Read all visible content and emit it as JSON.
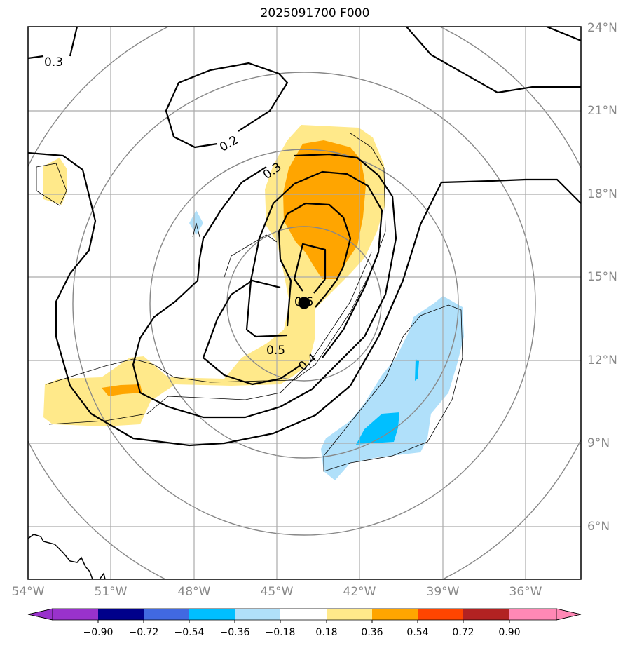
{
  "title": "2025091700 F000",
  "lon_labels": [
    "54°W",
    "51°W",
    "48°W",
    "45°W",
    "42°W",
    "39°W",
    "36°W"
  ],
  "lat_labels": [
    "24°N",
    "21°N",
    "18°N",
    "15°N",
    "12°N",
    "9°N",
    "6°N"
  ],
  "contour_labels": [
    "0.3",
    "0.2",
    "0.3",
    "0.6",
    "0.5",
    "0.4"
  ],
  "colorbar": {
    "ticks": [
      "−0.90",
      "−0.72",
      "−0.54",
      "−0.36",
      "−0.18",
      "0.18",
      "0.36",
      "0.54",
      "0.72",
      "0.90"
    ],
    "colors": [
      "#9932cc",
      "#00008b",
      "#4169e1",
      "#00bfff",
      "#b0e0fa",
      "#ffffff",
      "#ffe98a",
      "#ffa500",
      "#ff4500",
      "#b22222",
      "#ff88b5"
    ]
  },
  "colors": {
    "grid": "#888888",
    "light_yellow": "#ffe98a",
    "orange": "#ffa500",
    "light_blue": "#b0e0fa",
    "blue": "#00bfff"
  }
}
